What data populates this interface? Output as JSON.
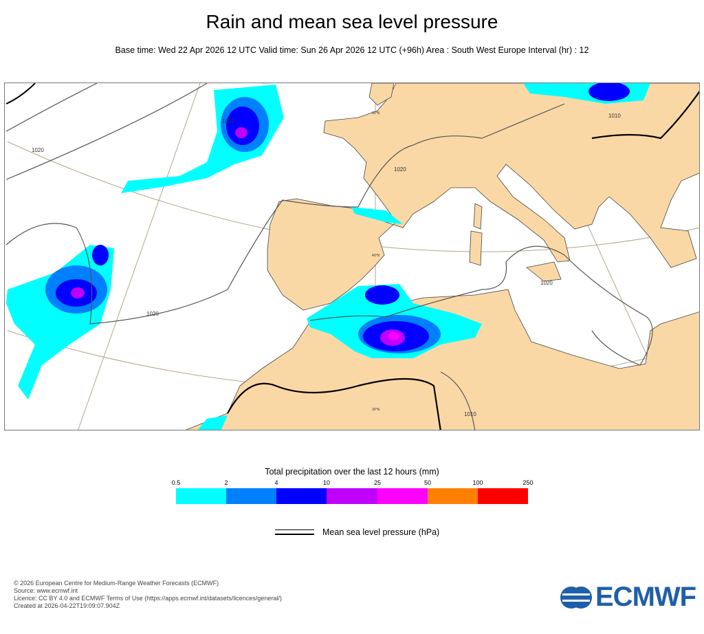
{
  "header": {
    "title": "Rain and mean sea level pressure",
    "subtitle": "Base time: Wed 22 Apr 2026 12 UTC Valid time: Sun 26 Apr 2026 12 UTC (+96h) Area : South West Europe Interval (hr) : 12"
  },
  "map": {
    "isobar_labels": [
      "1020",
      "1020",
      "1020",
      "1020",
      "1020",
      "1010",
      "1010"
    ],
    "latitude_labels": [
      "50°N",
      "40°N",
      "30°N"
    ],
    "colors": {
      "land": "#fad8a6",
      "sea": "#ffffff",
      "isobar": "#555555",
      "isobar_thick": "#000000"
    }
  },
  "legend": {
    "title": "Total precipitation over the last 12 hours (mm)",
    "ticks": [
      "0.5",
      "2",
      "4",
      "10",
      "25",
      "50",
      "100",
      "250"
    ],
    "colors": [
      "#00ffff",
      "#0080ff",
      "#0000ff",
      "#c000ff",
      "#ff00ff",
      "#ff8000",
      "#ff0000"
    ],
    "mslp_label": "Mean sea level pressure (hPa)"
  },
  "footer": {
    "copyright": "© 2026 European Centre for Medium-Range Weather Forecasts (ECMWF)",
    "source": "Source: www.ecmwf.int",
    "licence": "Licence: CC BY 4.0 and ECMWF Terms of Use (https://apps.ecmwf.int/datasets/licences/general/)",
    "created": "Created at 2026-04-22T19:09:07.904Z",
    "logo_text": "ECMWF"
  }
}
